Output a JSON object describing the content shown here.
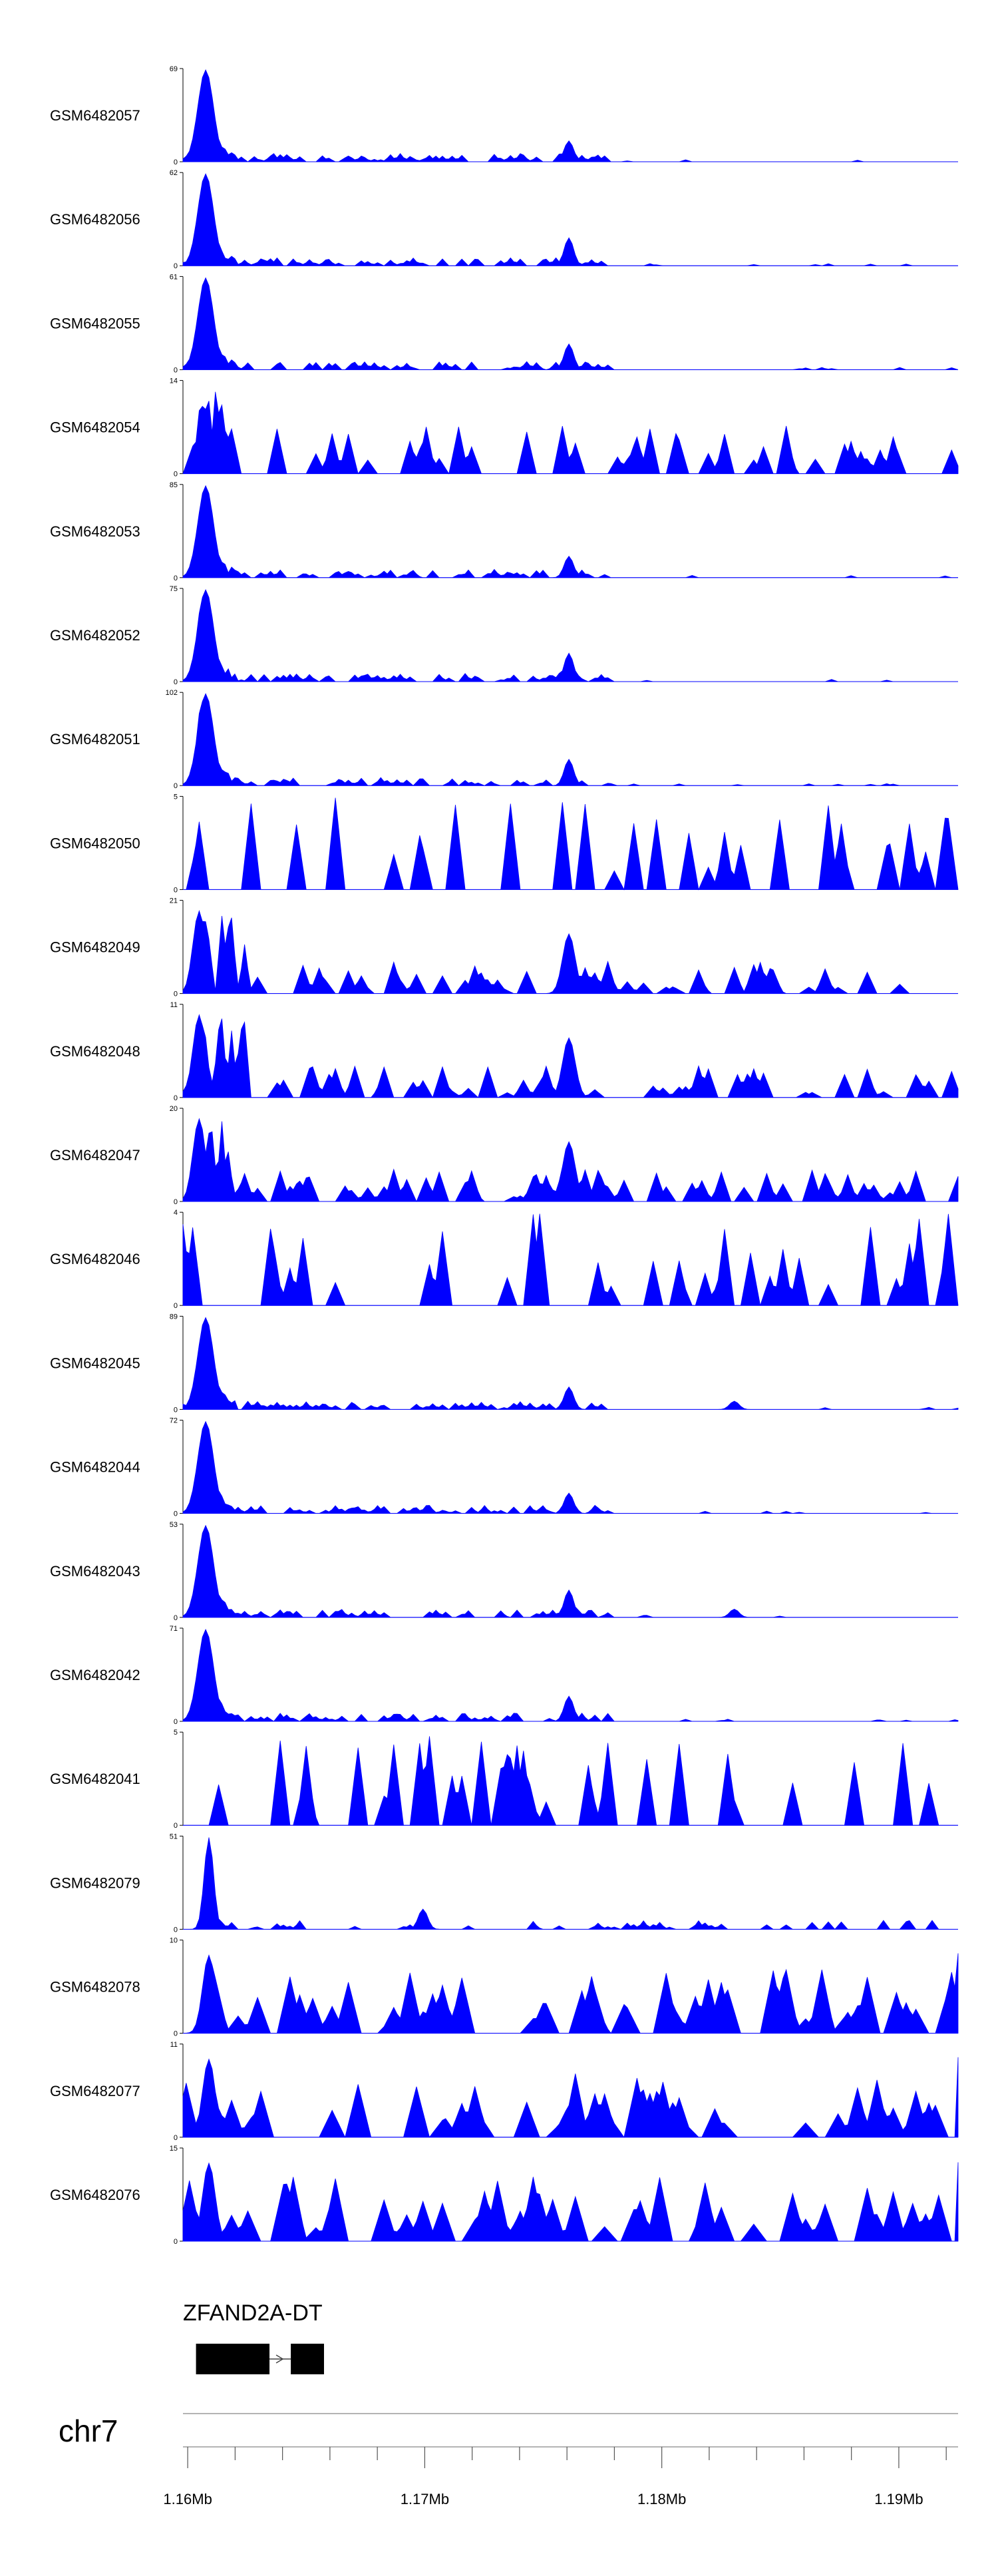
{
  "colors": {
    "signal": "#0000ff",
    "axis": "#000000",
    "gene": "#000000"
  },
  "chart_data": {
    "type": "area",
    "chromosome": "chr7",
    "xlim": [
      1.1598,
      1.1925
    ],
    "x_unit": "Mb",
    "x_ticks": [
      {
        "value": 1.16,
        "label": "1.16Mb"
      },
      {
        "value": 1.17,
        "label": "1.17Mb"
      },
      {
        "value": 1.18,
        "label": "1.18Mb"
      },
      {
        "value": 1.19,
        "label": "1.19Mb"
      }
    ],
    "x_minor_ticks": [
      1.16,
      1.162,
      1.164,
      1.166,
      1.168,
      1.17,
      1.172,
      1.174,
      1.176,
      1.178,
      1.18,
      1.182,
      1.184,
      1.186,
      1.188,
      1.19,
      1.192
    ],
    "gene": {
      "name": "ZFAND2A-DT",
      "exons": [
        [
          1.16035,
          1.16345
        ],
        [
          1.16435,
          1.16575
        ]
      ],
      "strand": "+"
    },
    "tracks": [
      {
        "name": "GSM6482057",
        "max": 69,
        "pattern": "peak"
      },
      {
        "name": "GSM6482056",
        "max": 62,
        "pattern": "peak"
      },
      {
        "name": "GSM6482055",
        "max": 61,
        "pattern": "peak"
      },
      {
        "name": "GSM6482054",
        "max": 14,
        "pattern": "noisy"
      },
      {
        "name": "GSM6482053",
        "max": 85,
        "pattern": "peak"
      },
      {
        "name": "GSM6482052",
        "max": 75,
        "pattern": "peak"
      },
      {
        "name": "GSM6482051",
        "max": 102,
        "pattern": "peak"
      },
      {
        "name": "GSM6482050",
        "max": 5,
        "pattern": "noise"
      },
      {
        "name": "GSM6482049",
        "max": 21,
        "pattern": "mid"
      },
      {
        "name": "GSM6482048",
        "max": 11,
        "pattern": "mid"
      },
      {
        "name": "GSM6482047",
        "max": 20,
        "pattern": "mid"
      },
      {
        "name": "GSM6482046",
        "max": 4,
        "pattern": "noise"
      },
      {
        "name": "GSM6482045",
        "max": 89,
        "pattern": "peak_extra"
      },
      {
        "name": "GSM6482044",
        "max": 72,
        "pattern": "peak"
      },
      {
        "name": "GSM6482043",
        "max": 53,
        "pattern": "peak_extra"
      },
      {
        "name": "GSM6482042",
        "max": 71,
        "pattern": "peak"
      },
      {
        "name": "GSM6482041",
        "max": 5,
        "pattern": "noise"
      },
      {
        "name": "GSM6482079",
        "max": 51,
        "pattern": "peak_alt"
      },
      {
        "name": "GSM6482078",
        "max": 10,
        "pattern": "noisy2"
      },
      {
        "name": "GSM6482077",
        "max": 11,
        "pattern": "noisy2"
      },
      {
        "name": "GSM6482076",
        "max": 15,
        "pattern": "noisy2"
      }
    ]
  }
}
